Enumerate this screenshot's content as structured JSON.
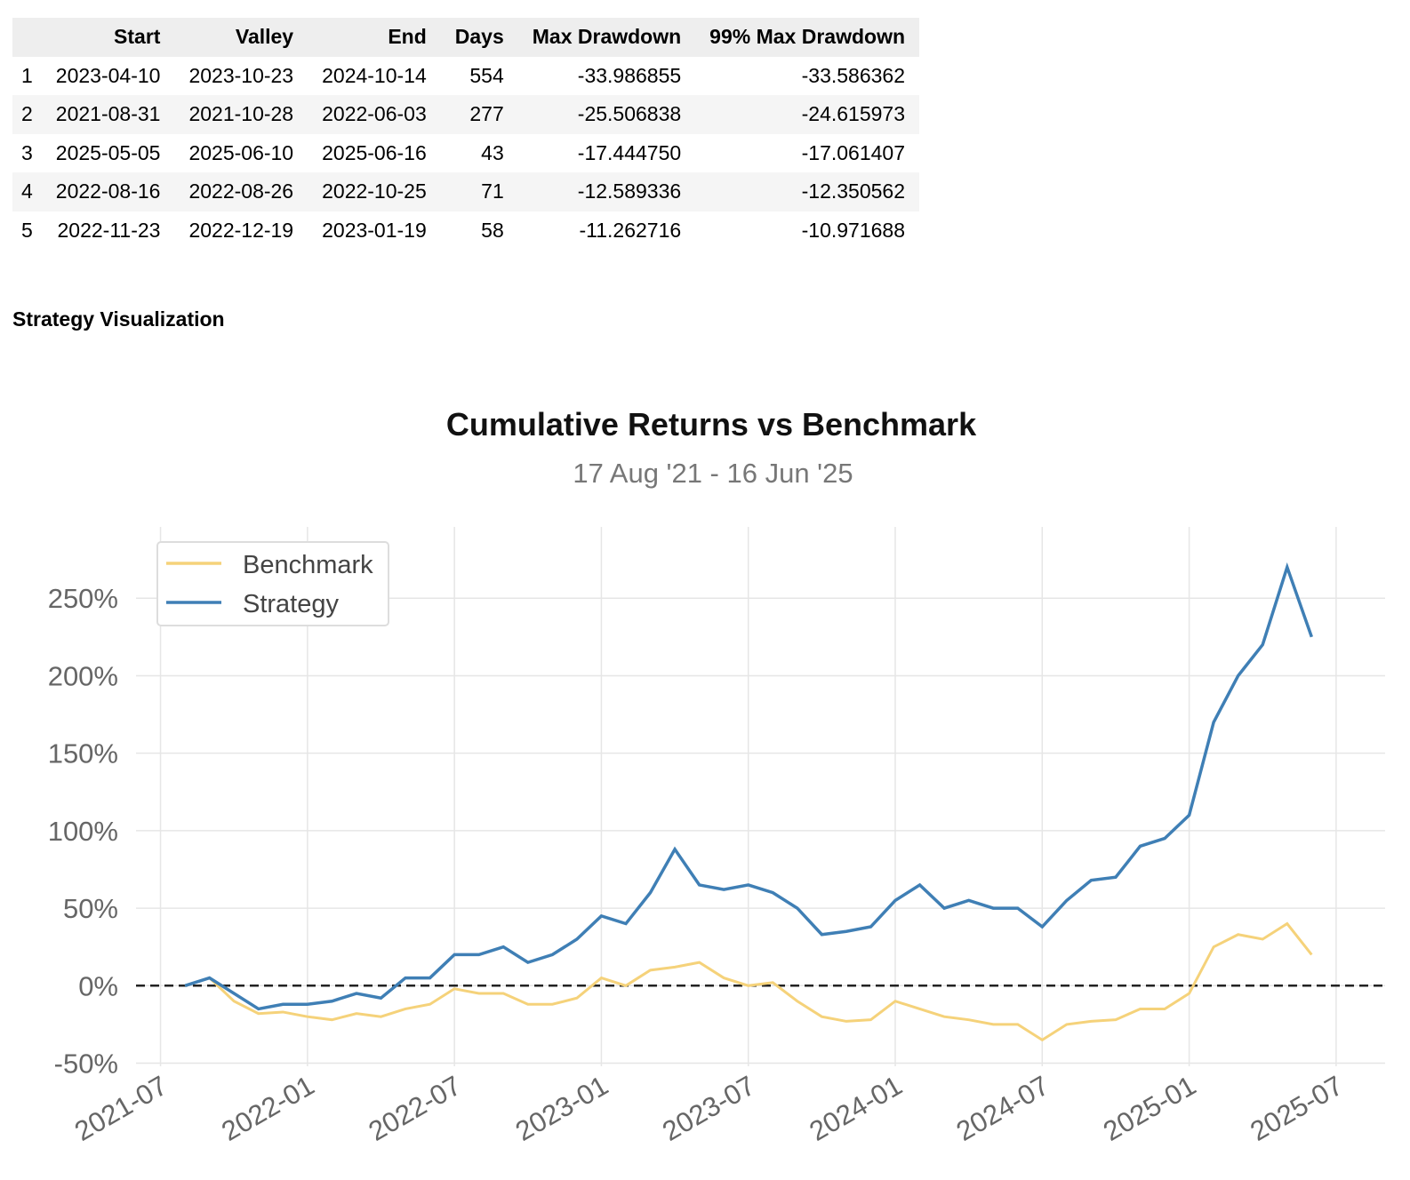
{
  "table": {
    "columns": [
      "Start",
      "Valley",
      "End",
      "Days",
      "Max Drawdown",
      "99% Max Drawdown"
    ],
    "rows": [
      [
        "1",
        "2023-04-10",
        "2023-10-23",
        "2024-10-14",
        "554",
        "-33.986855",
        "-33.586362"
      ],
      [
        "2",
        "2021-08-31",
        "2021-10-28",
        "2022-06-03",
        "277",
        "-25.506838",
        "-24.615973"
      ],
      [
        "3",
        "2025-05-05",
        "2025-06-10",
        "2025-06-16",
        "43",
        "-17.444750",
        "-17.061407"
      ],
      [
        "4",
        "2022-08-16",
        "2022-08-26",
        "2022-10-25",
        "71",
        "-12.589336",
        "-12.350562"
      ],
      [
        "5",
        "2022-11-23",
        "2022-12-19",
        "2023-01-19",
        "58",
        "-11.262716",
        "-10.971688"
      ]
    ]
  },
  "heading": "Strategy Visualization",
  "chart_data": {
    "type": "line",
    "title": "Cumulative Returns vs Benchmark",
    "subtitle": "17 Aug '21 - 16 Jun '25",
    "x": [
      "2021-08",
      "2021-09",
      "2021-10",
      "2021-11",
      "2021-12",
      "2022-01",
      "2022-02",
      "2022-03",
      "2022-04",
      "2022-05",
      "2022-06",
      "2022-07",
      "2022-08",
      "2022-09",
      "2022-10",
      "2022-11",
      "2022-12",
      "2023-01",
      "2023-02",
      "2023-03",
      "2023-04",
      "2023-05",
      "2023-06",
      "2023-07",
      "2023-08",
      "2023-09",
      "2023-10",
      "2023-11",
      "2023-12",
      "2024-01",
      "2024-02",
      "2024-03",
      "2024-04",
      "2024-05",
      "2024-06",
      "2024-07",
      "2024-08",
      "2024-09",
      "2024-10",
      "2024-11",
      "2024-12",
      "2025-01",
      "2025-02",
      "2025-03",
      "2025-04",
      "2025-05",
      "2025-06"
    ],
    "series": [
      {
        "name": "Benchmark",
        "color": "#f5d27a",
        "values": [
          0,
          5,
          -10,
          -18,
          -17,
          -20,
          -22,
          -18,
          -20,
          -15,
          -12,
          -2,
          -5,
          -5,
          -12,
          -12,
          -8,
          5,
          0,
          10,
          12,
          15,
          5,
          0,
          2,
          -10,
          -20,
          -23,
          -22,
          -10,
          -15,
          -20,
          -22,
          -25,
          -25,
          -35,
          -25,
          -23,
          -22,
          -15,
          -15,
          -5,
          25,
          33,
          30,
          40,
          20
        ]
      },
      {
        "name": "Strategy",
        "color": "#3f7fb5",
        "values": [
          0,
          5,
          -5,
          -15,
          -12,
          -12,
          -10,
          -5,
          -8,
          5,
          5,
          20,
          20,
          25,
          15,
          20,
          30,
          45,
          40,
          60,
          88,
          65,
          62,
          65,
          60,
          50,
          33,
          35,
          38,
          55,
          65,
          50,
          55,
          50,
          50,
          38,
          55,
          68,
          70,
          90,
          95,
          110,
          170,
          200,
          220,
          270,
          225
        ]
      }
    ],
    "xlim": [
      "2021-06",
      "2025-09"
    ],
    "xticks": [
      "2021-07",
      "2022-01",
      "2022-07",
      "2023-01",
      "2023-07",
      "2024-01",
      "2024-07",
      "2025-01",
      "2025-07"
    ],
    "ylim": [
      -52,
      296
    ],
    "yticks": [
      {
        "value": -50,
        "label": "-50%"
      },
      {
        "value": 0,
        "label": "0%"
      },
      {
        "value": 50,
        "label": "50%"
      },
      {
        "value": 100,
        "label": "100%"
      },
      {
        "value": 150,
        "label": "150%"
      },
      {
        "value": 200,
        "label": "200%"
      },
      {
        "value": 250,
        "label": "250%"
      }
    ],
    "grid": true,
    "legend": "upper left"
  }
}
